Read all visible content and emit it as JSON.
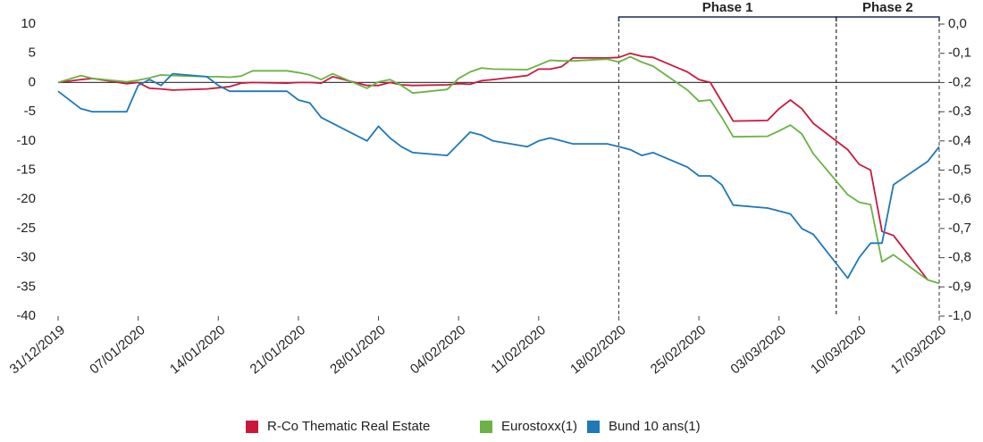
{
  "chart_data": {
    "type": "line",
    "x": [
      "31/12/2019",
      "02/01/2020",
      "03/01/2020",
      "06/01/2020",
      "07/01/2020",
      "08/01/2020",
      "09/01/2020",
      "10/01/2020",
      "13/01/2020",
      "14/01/2020",
      "15/01/2020",
      "16/01/2020",
      "17/01/2020",
      "20/01/2020",
      "21/01/2020",
      "22/01/2020",
      "23/01/2020",
      "24/01/2020",
      "27/01/2020",
      "28/01/2020",
      "29/01/2020",
      "30/01/2020",
      "31/01/2020",
      "03/02/2020",
      "04/02/2020",
      "05/02/2020",
      "06/02/2020",
      "07/02/2020",
      "10/02/2020",
      "11/02/2020",
      "12/02/2020",
      "13/02/2020",
      "14/02/2020",
      "17/02/2020",
      "18/02/2020",
      "19/02/2020",
      "20/02/2020",
      "21/02/2020",
      "24/02/2020",
      "25/02/2020",
      "26/02/2020",
      "27/02/2020",
      "28/02/2020",
      "02/03/2020",
      "03/03/2020",
      "04/03/2020",
      "05/03/2020",
      "06/03/2020",
      "09/03/2020",
      "10/03/2020",
      "11/03/2020",
      "12/03/2020",
      "13/03/2020",
      "16/03/2020",
      "17/03/2020"
    ],
    "series": [
      {
        "name": "R-Co Thematic Real Estate",
        "color": "#c8193c",
        "values": [
          0,
          0.5,
          0.7,
          -0.2,
          0,
          -1.0,
          -1.1,
          -1.3,
          -1.1,
          -0.9,
          -0.7,
          -0.1,
          0,
          -0.1,
          0,
          0,
          -0.1,
          1.0,
          -0.5,
          -0.5,
          0,
          -0.4,
          -0.5,
          -0.4,
          -0.2,
          -0.3,
          0.3,
          0.5,
          1.2,
          2.3,
          2.3,
          2.7,
          4.2,
          4.2,
          4.3,
          5.0,
          4.5,
          4.3,
          1.8,
          0.5,
          0,
          -3.3,
          -6.6,
          -6.5,
          -4.5,
          -3.0,
          -4.5,
          -7.0,
          -11.5,
          -14.0,
          -15.0,
          -25.5,
          -26.2,
          -33.8,
          null
        ]
      },
      {
        "name": "Eurostoxx(1)",
        "color": "#6ab344",
        "values": [
          0,
          1.2,
          0.7,
          0.1,
          0.4,
          0.8,
          1.3,
          1.2,
          1.0,
          1.0,
          0.9,
          1.1,
          2.0,
          2.0,
          1.7,
          1.3,
          0.5,
          1.5,
          -1.0,
          0.1,
          0.5,
          -0.5,
          -1.8,
          -1.2,
          0.7,
          1.8,
          2.5,
          2.3,
          2.2,
          3.0,
          3.8,
          3.7,
          3.7,
          4.0,
          3.5,
          4.4,
          3.5,
          2.8,
          -1.3,
          -3.2,
          -3.0,
          -6.0,
          -9.3,
          -9.2,
          -8.3,
          -7.3,
          -8.8,
          -12.2,
          -19.2,
          -20.5,
          -20.9,
          -30.7,
          -29.5,
          -33.8,
          -34.4
        ]
      },
      {
        "name": "Bund 10 ans(1)",
        "color": "#1f78b8",
        "axis": "y2",
        "values": [
          -0.23,
          -0.29,
          -0.3,
          -0.3,
          -0.21,
          -0.19,
          -0.21,
          -0.17,
          -0.18,
          -0.21,
          -0.23,
          -0.23,
          -0.23,
          -0.23,
          -0.26,
          -0.27,
          -0.32,
          -0.34,
          -0.4,
          -0.35,
          -0.39,
          -0.42,
          -0.44,
          -0.45,
          -0.41,
          -0.37,
          -0.38,
          -0.4,
          -0.42,
          -0.4,
          -0.39,
          -0.4,
          -0.41,
          -0.41,
          -0.42,
          -0.43,
          -0.45,
          -0.44,
          -0.49,
          -0.52,
          -0.52,
          -0.55,
          -0.62,
          -0.63,
          -0.64,
          -0.65,
          -0.7,
          -0.72,
          -0.87,
          -0.8,
          -0.75,
          -0.75,
          -0.55,
          -0.47,
          -0.42
        ]
      }
    ],
    "xlim": [
      "31/12/2019",
      "17/03/2020"
    ],
    "xticks": [
      "31/12/2019",
      "07/01/2020",
      "14/01/2020",
      "21/01/2020",
      "28/01/2020",
      "04/02/2020",
      "11/02/2020",
      "18/02/2020",
      "25/02/2020",
      "03/03/2020",
      "10/03/2020",
      "17/03/2020"
    ],
    "ylim": [
      -40,
      10
    ],
    "yticks": [
      10,
      5,
      0,
      -5,
      -10,
      -15,
      -20,
      -25,
      -30,
      -35,
      -40
    ],
    "y2lim": [
      -1.0,
      0.0
    ],
    "y2ticks": [
      {
        "value": 0,
        "label": "0,0"
      },
      {
        "value": -0.1,
        "label": "-0,1"
      },
      {
        "value": -0.2,
        "label": "-0,2"
      },
      {
        "value": -0.3,
        "label": "-0,3"
      },
      {
        "value": -0.4,
        "label": "-0,4"
      },
      {
        "value": -0.5,
        "label": "-0,5"
      },
      {
        "value": -0.6,
        "label": "-0,6"
      },
      {
        "value": -0.7,
        "label": "-0,7"
      },
      {
        "value": -0.8,
        "label": "-0,8"
      },
      {
        "value": -0.9,
        "label": "-0,9"
      },
      {
        "value": -1.0,
        "label": "-1,0"
      }
    ],
    "phases": [
      {
        "label": "Phase 1",
        "start": "18/02/2020",
        "end": "08/03/2020"
      },
      {
        "label": "Phase 2",
        "start": "08/03/2020",
        "end": "17/03/2020"
      }
    ],
    "legend": "bottom"
  }
}
